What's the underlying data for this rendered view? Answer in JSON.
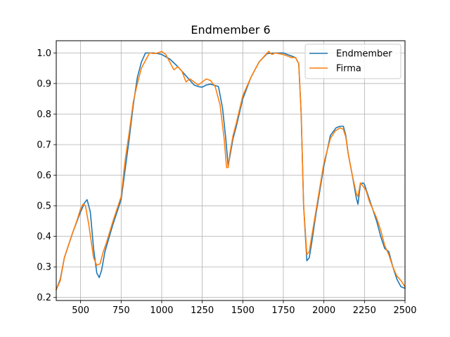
{
  "chart_data": {
    "type": "line",
    "title": "Endmember 6",
    "xlabel": "",
    "ylabel": "",
    "xlim": [
      350,
      2500
    ],
    "ylim": [
      0.19,
      1.04
    ],
    "xticks": [
      500,
      750,
      1000,
      1250,
      1500,
      1750,
      2000,
      2250,
      2500
    ],
    "xtick_labels": [
      "500",
      "750",
      "1000",
      "1250",
      "1500",
      "1750",
      "2000",
      "2250",
      "2500"
    ],
    "yticks": [
      0.2,
      0.3,
      0.4,
      0.5,
      0.6,
      0.7,
      0.8,
      0.9,
      1.0
    ],
    "ytick_labels": [
      "0.2",
      "0.3",
      "0.4",
      "0.5",
      "0.6",
      "0.7",
      "0.8",
      "0.9",
      "1.0"
    ],
    "grid": true,
    "legend_position": "top-right",
    "series": [
      {
        "name": "Endmember",
        "color": "#1f77b4",
        "x": [
          350,
          375,
          400,
          450,
          500,
          525,
          540,
          560,
          580,
          600,
          615,
          630,
          650,
          700,
          750,
          775,
          800,
          825,
          850,
          875,
          900,
          925,
          950,
          975,
          1000,
          1050,
          1100,
          1150,
          1200,
          1225,
          1250,
          1275,
          1300,
          1350,
          1375,
          1395,
          1410,
          1420,
          1440,
          1460,
          1500,
          1550,
          1600,
          1650,
          1700,
          1750,
          1775,
          1800,
          1825,
          1845,
          1860,
          1875,
          1895,
          1910,
          1925,
          1950,
          2000,
          2040,
          2075,
          2100,
          2120,
          2135,
          2150,
          2175,
          2200,
          2210,
          2225,
          2240,
          2250,
          2275,
          2300,
          2325,
          2350,
          2375,
          2400,
          2425,
          2450,
          2475,
          2500
        ],
        "y": [
          0.225,
          0.26,
          0.33,
          0.41,
          0.48,
          0.51,
          0.52,
          0.48,
          0.36,
          0.28,
          0.265,
          0.29,
          0.35,
          0.44,
          0.52,
          0.62,
          0.72,
          0.83,
          0.92,
          0.97,
          1.0,
          1.0,
          1.0,
          0.998,
          0.995,
          0.98,
          0.955,
          0.925,
          0.895,
          0.89,
          0.888,
          0.895,
          0.898,
          0.89,
          0.82,
          0.72,
          0.63,
          0.66,
          0.72,
          0.76,
          0.85,
          0.92,
          0.97,
          0.998,
          1.0,
          1.0,
          0.995,
          0.99,
          0.985,
          0.965,
          0.8,
          0.5,
          0.32,
          0.33,
          0.38,
          0.47,
          0.63,
          0.73,
          0.755,
          0.76,
          0.76,
          0.73,
          0.67,
          0.6,
          0.525,
          0.505,
          0.57,
          0.575,
          0.57,
          0.53,
          0.49,
          0.45,
          0.4,
          0.36,
          0.35,
          0.3,
          0.26,
          0.235,
          0.23
        ]
      },
      {
        "name": "Firma",
        "color": "#ff7f0e",
        "x": [
          350,
          375,
          400,
          450,
          480,
          500,
          515,
          530,
          550,
          580,
          600,
          620,
          640,
          660,
          700,
          750,
          775,
          800,
          825,
          850,
          875,
          900,
          925,
          950,
          975,
          1000,
          1025,
          1050,
          1075,
          1100,
          1125,
          1150,
          1160,
          1175,
          1200,
          1225,
          1250,
          1275,
          1300,
          1330,
          1360,
          1385,
          1400,
          1410,
          1420,
          1440,
          1460,
          1500,
          1550,
          1600,
          1650,
          1660,
          1680,
          1700,
          1750,
          1775,
          1800,
          1825,
          1845,
          1860,
          1875,
          1895,
          1910,
          1925,
          1950,
          2000,
          2040,
          2070,
          2100,
          2120,
          2135,
          2150,
          2175,
          2200,
          2210,
          2225,
          2240,
          2260,
          2280,
          2300,
          2325,
          2350,
          2375,
          2400,
          2425,
          2450,
          2475,
          2500
        ],
        "y": [
          0.225,
          0.255,
          0.33,
          0.41,
          0.455,
          0.49,
          0.505,
          0.5,
          0.44,
          0.33,
          0.305,
          0.31,
          0.35,
          0.38,
          0.45,
          0.53,
          0.65,
          0.74,
          0.84,
          0.9,
          0.95,
          0.975,
          1.0,
          0.998,
          1.0,
          1.005,
          0.995,
          0.97,
          0.945,
          0.955,
          0.94,
          0.905,
          0.91,
          0.915,
          0.905,
          0.895,
          0.905,
          0.915,
          0.91,
          0.89,
          0.83,
          0.72,
          0.625,
          0.625,
          0.67,
          0.73,
          0.77,
          0.86,
          0.92,
          0.97,
          1.0,
          1.005,
          0.995,
          1.0,
          0.995,
          0.99,
          0.985,
          0.985,
          0.965,
          0.8,
          0.5,
          0.34,
          0.35,
          0.4,
          0.48,
          0.64,
          0.72,
          0.745,
          0.755,
          0.75,
          0.725,
          0.67,
          0.6,
          0.54,
          0.53,
          0.575,
          0.565,
          0.55,
          0.515,
          0.49,
          0.46,
          0.42,
          0.37,
          0.34,
          0.3,
          0.27,
          0.255,
          0.235
        ]
      }
    ]
  }
}
